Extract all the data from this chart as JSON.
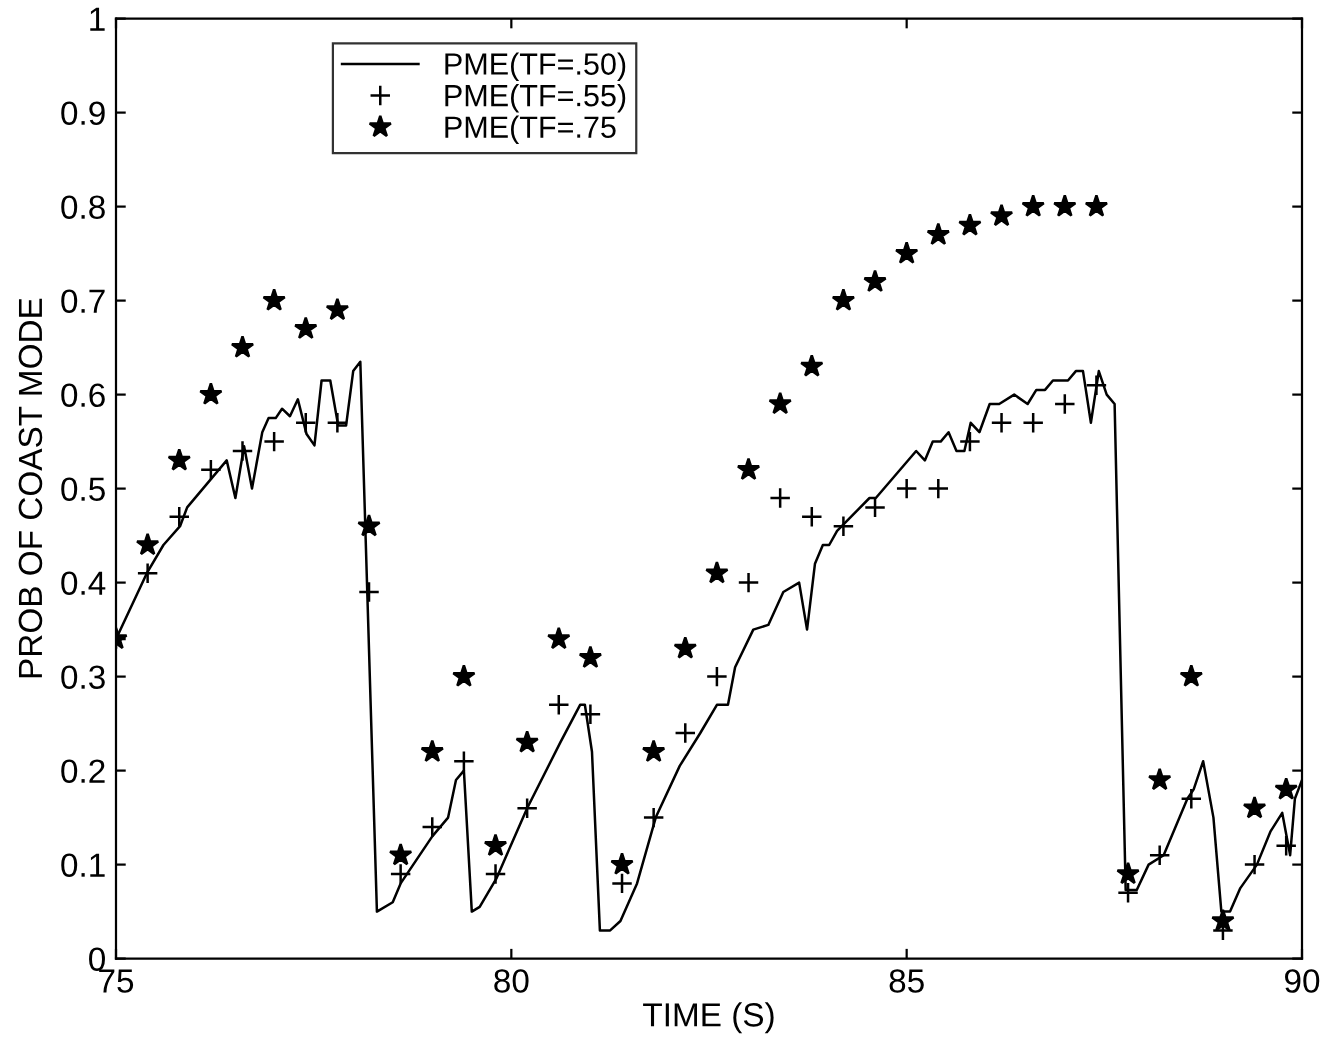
{
  "chart_data": {
    "type": "line",
    "xlabel": "TIME (S)",
    "ylabel": "PROB OF COAST MODE",
    "xlim": [
      75,
      90
    ],
    "ylim": [
      0,
      1
    ],
    "xticks": [
      75,
      80,
      85,
      90
    ],
    "yticks": [
      0,
      0.1,
      0.2,
      0.3,
      0.4,
      0.5,
      0.6,
      0.7,
      0.8,
      0.9,
      1
    ],
    "grid": false,
    "legend": "top left",
    "series": [
      {
        "name": "PME(TF=.50)",
        "color": "#000000",
        "marker": "none",
        "line_style": "solid",
        "x": [
          75.0,
          75.39,
          75.6,
          75.81,
          75.9,
          76.4,
          76.51,
          76.62,
          76.72,
          76.85,
          76.93,
          77.02,
          77.1,
          77.2,
          77.3,
          77.41,
          77.51,
          77.6,
          77.71,
          77.81,
          77.91,
          78.0,
          78.09,
          78.3,
          78.5,
          78.6,
          79.0,
          79.2,
          79.3,
          79.4,
          79.5,
          79.6,
          79.81,
          80.2,
          80.62,
          80.87,
          80.93,
          81.02,
          81.12,
          81.25,
          81.38,
          81.59,
          81.83,
          82.13,
          82.39,
          82.6,
          82.74,
          82.83,
          83.06,
          83.25,
          83.44,
          83.64,
          83.74,
          83.84,
          83.94,
          84.02,
          84.12,
          84.53,
          84.61,
          85.12,
          85.23,
          85.33,
          85.43,
          85.53,
          85.63,
          85.73,
          85.81,
          85.92,
          86.05,
          86.17,
          86.36,
          86.53,
          86.64,
          86.75,
          86.85,
          87.04,
          87.14,
          87.23,
          87.33,
          87.43,
          87.53,
          87.63,
          87.77,
          87.91,
          88.06,
          88.25,
          88.55,
          88.63,
          88.75,
          88.88,
          88.98,
          89.09,
          89.22,
          89.43,
          89.6,
          89.75,
          89.85,
          89.91,
          90.0
        ],
        "values": [
          0.34,
          0.41,
          0.44,
          0.46,
          0.48,
          0.53,
          0.49,
          0.545,
          0.5,
          0.56,
          0.575,
          0.575,
          0.585,
          0.577,
          0.595,
          0.558,
          0.546,
          0.615,
          0.615,
          0.567,
          0.567,
          0.625,
          0.635,
          0.05,
          0.06,
          0.08,
          0.13,
          0.15,
          0.19,
          0.2,
          0.05,
          0.055,
          0.085,
          0.16,
          0.23,
          0.27,
          0.27,
          0.22,
          0.03,
          0.03,
          0.04,
          0.08,
          0.151,
          0.205,
          0.24,
          0.27,
          0.27,
          0.31,
          0.35,
          0.355,
          0.39,
          0.4,
          0.35,
          0.42,
          0.44,
          0.44,
          0.455,
          0.49,
          0.49,
          0.54,
          0.53,
          0.55,
          0.55,
          0.56,
          0.54,
          0.54,
          0.57,
          0.56,
          0.59,
          0.59,
          0.6,
          0.59,
          0.605,
          0.605,
          0.615,
          0.615,
          0.625,
          0.625,
          0.57,
          0.625,
          0.6,
          0.59,
          0.073,
          0.073,
          0.1,
          0.11,
          0.17,
          0.18,
          0.21,
          0.15,
          0.05,
          0.05,
          0.075,
          0.1,
          0.135,
          0.155,
          0.11,
          0.17,
          0.19
        ]
      },
      {
        "name": "PME(TF=.55)",
        "type": "scatter",
        "color": "#000000",
        "marker": "cross",
        "x": [
          75.0,
          75.4,
          75.8,
          76.2,
          76.6,
          77.0,
          77.4,
          77.8,
          78.2,
          78.6,
          79.0,
          79.4,
          79.8,
          80.2,
          80.6,
          81.0,
          81.4,
          81.8,
          82.2,
          82.6,
          83.0,
          83.4,
          83.8,
          84.2,
          84.6,
          85.0,
          85.4,
          85.8,
          86.2,
          86.6,
          87.0,
          87.4,
          87.8,
          88.2,
          88.6,
          89.0,
          89.4,
          89.8
        ],
        "values": [
          0.34,
          0.41,
          0.47,
          0.52,
          0.54,
          0.55,
          0.57,
          0.57,
          0.39,
          0.09,
          0.14,
          0.21,
          0.09,
          0.16,
          0.27,
          0.26,
          0.08,
          0.15,
          0.24,
          0.3,
          0.4,
          0.49,
          0.47,
          0.46,
          0.48,
          0.5,
          0.5,
          0.55,
          0.57,
          0.57,
          0.59,
          0.61,
          0.07,
          0.11,
          0.17,
          0.03,
          0.1,
          0.12
        ]
      },
      {
        "name": "PME(TF=.75",
        "type": "scatter",
        "color": "#000000",
        "marker": "star",
        "x": [
          75.0,
          75.4,
          75.8,
          76.2,
          76.6,
          77.0,
          77.4,
          77.8,
          78.2,
          78.6,
          79.0,
          79.4,
          79.8,
          80.2,
          80.6,
          81.0,
          81.4,
          81.8,
          82.2,
          82.6,
          83.0,
          83.4,
          83.8,
          84.2,
          84.6,
          85.0,
          85.4,
          85.8,
          86.2,
          86.6,
          87.0,
          87.4,
          87.8,
          88.2,
          88.6,
          89.0,
          89.4,
          89.8
        ],
        "values": [
          0.34,
          0.44,
          0.53,
          0.6,
          0.65,
          0.7,
          0.67,
          0.69,
          0.46,
          0.11,
          0.22,
          0.3,
          0.12,
          0.23,
          0.34,
          0.32,
          0.1,
          0.22,
          0.33,
          0.41,
          0.52,
          0.59,
          0.63,
          0.7,
          0.72,
          0.75,
          0.77,
          0.78,
          0.79,
          0.8,
          0.8,
          0.8,
          0.09,
          0.19,
          0.3,
          0.04,
          0.16,
          0.18
        ]
      }
    ]
  }
}
